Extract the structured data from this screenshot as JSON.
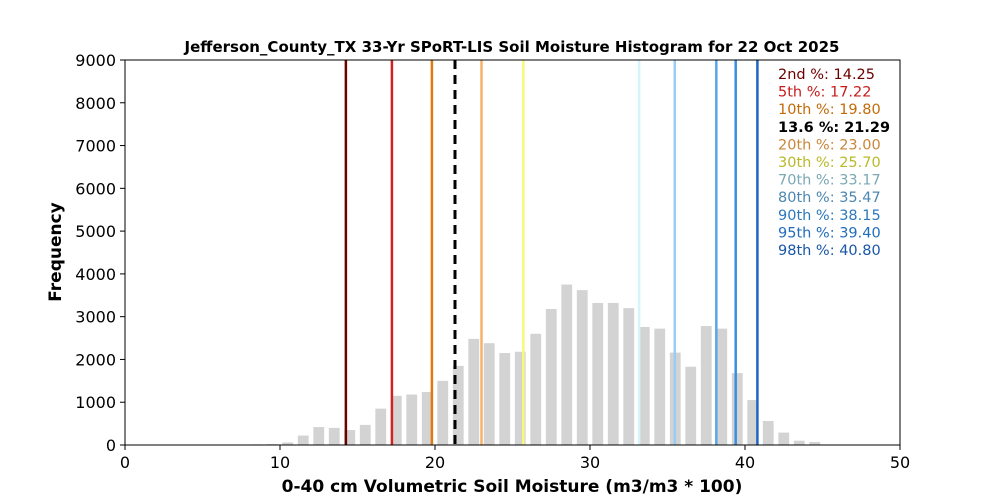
{
  "chart_data": {
    "type": "bar",
    "title": "Jefferson_County_TX 33-Yr SPoRT-LIS Soil Moisture Histogram for 22 Oct 2025",
    "xlabel": "0-40 cm Volumetric Soil Moisture (m3/m3 * 100)",
    "ylabel": "Frequency",
    "xlim": [
      0,
      50
    ],
    "ylim": [
      0,
      9000
    ],
    "xticks": [
      0,
      10,
      20,
      30,
      40,
      50
    ],
    "yticks": [
      0,
      1000,
      2000,
      3000,
      4000,
      5000,
      6000,
      7000,
      8000,
      9000
    ],
    "grid": false,
    "bar_color": "#d3d3d3",
    "bins": [
      {
        "x": 6.5,
        "y": 10
      },
      {
        "x": 7.5,
        "y": 5
      },
      {
        "x": 8.5,
        "y": 15
      },
      {
        "x": 9.5,
        "y": 20
      },
      {
        "x": 10.5,
        "y": 60
      },
      {
        "x": 11.5,
        "y": 220
      },
      {
        "x": 12.5,
        "y": 420
      },
      {
        "x": 13.5,
        "y": 400
      },
      {
        "x": 14.5,
        "y": 350
      },
      {
        "x": 15.5,
        "y": 470
      },
      {
        "x": 16.5,
        "y": 850
      },
      {
        "x": 17.5,
        "y": 1150
      },
      {
        "x": 18.5,
        "y": 1180
      },
      {
        "x": 19.5,
        "y": 1240
      },
      {
        "x": 20.5,
        "y": 1500
      },
      {
        "x": 21.5,
        "y": 1850
      },
      {
        "x": 22.5,
        "y": 2480
      },
      {
        "x": 23.5,
        "y": 2380
      },
      {
        "x": 24.5,
        "y": 2150
      },
      {
        "x": 25.5,
        "y": 2180
      },
      {
        "x": 26.5,
        "y": 2600
      },
      {
        "x": 27.5,
        "y": 3180
      },
      {
        "x": 28.5,
        "y": 3750
      },
      {
        "x": 29.5,
        "y": 3620
      },
      {
        "x": 30.5,
        "y": 3320
      },
      {
        "x": 31.5,
        "y": 3320
      },
      {
        "x": 32.5,
        "y": 3200
      },
      {
        "x": 33.5,
        "y": 2760
      },
      {
        "x": 34.5,
        "y": 2720
      },
      {
        "x": 35.5,
        "y": 2160
      },
      {
        "x": 36.5,
        "y": 1830
      },
      {
        "x": 37.5,
        "y": 2780
      },
      {
        "x": 38.5,
        "y": 2720
      },
      {
        "x": 39.5,
        "y": 1680
      },
      {
        "x": 40.5,
        "y": 1050
      },
      {
        "x": 41.5,
        "y": 560
      },
      {
        "x": 42.5,
        "y": 290
      },
      {
        "x": 43.5,
        "y": 100
      },
      {
        "x": 44.5,
        "y": 70
      }
    ],
    "bin_width": 1,
    "reference_lines": [
      {
        "label": "2nd %: 14.25",
        "value": 14.25,
        "color": "#6b0000",
        "text_color": "#6b0000",
        "dashed": false
      },
      {
        "label": "5th %: 17.22",
        "value": 17.22,
        "color": "#d42020",
        "text_color": "#c81c1c",
        "dashed": false
      },
      {
        "label": "10th %: 19.80",
        "value": 19.8,
        "color": "#e07a10",
        "text_color": "#c46a08",
        "dashed": false
      },
      {
        "label": "13.6 %: 21.29",
        "value": 21.29,
        "color": "#000000",
        "text_color": "#000000",
        "dashed": true
      },
      {
        "label": "20th %: 23.00",
        "value": 23.0,
        "color": "#f7b26a",
        "text_color": "#c9873a",
        "dashed": false
      },
      {
        "label": "30th %: 25.70",
        "value": 25.7,
        "color": "#f8f87a",
        "text_color": "#b9b92a",
        "dashed": false
      },
      {
        "label": "70th %: 33.17",
        "value": 33.17,
        "color": "#d6f4fb",
        "text_color": "#7aa8b4",
        "dashed": false
      },
      {
        "label": "80th %: 35.47",
        "value": 35.47,
        "color": "#98ccf4",
        "text_color": "#4d87b0",
        "dashed": false
      },
      {
        "label": "90th %: 38.15",
        "value": 38.15,
        "color": "#5aa6e6",
        "text_color": "#2d78bd",
        "dashed": false
      },
      {
        "label": "95th %: 39.40",
        "value": 39.4,
        "color": "#3a8ede",
        "text_color": "#226cbc",
        "dashed": false
      },
      {
        "label": "98th %: 40.80",
        "value": 40.8,
        "color": "#1e66c4",
        "text_color": "#1a56a8",
        "dashed": false
      }
    ],
    "legend_placement": "top-right"
  }
}
